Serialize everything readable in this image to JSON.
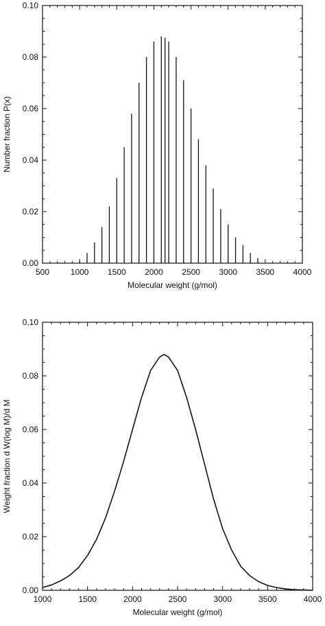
{
  "chart_data": [
    {
      "type": "bar",
      "title": "",
      "xlabel": "Molecular weight (g/mol)",
      "ylabel": "Number fraction P(x)",
      "xlim": [
        500,
        4000
      ],
      "ylim": [
        0,
        0.1
      ],
      "xticks": [
        "500",
        "1000",
        "1500",
        "2000",
        "2500",
        "3000",
        "3500",
        "4000"
      ],
      "yticks": [
        "0.00",
        "0.02",
        "0.04",
        "0.06",
        "0.08",
        "0.10"
      ],
      "grid": false,
      "x": [
        1000,
        1100,
        1200,
        1300,
        1400,
        1500,
        1600,
        1700,
        1800,
        1900,
        2000,
        2100,
        2150,
        2200,
        2300,
        2400,
        2500,
        2600,
        2700,
        2800,
        2900,
        3000,
        3100,
        3200,
        3300,
        3400
      ],
      "values": [
        0.001,
        0.004,
        0.008,
        0.014,
        0.022,
        0.033,
        0.045,
        0.058,
        0.07,
        0.08,
        0.086,
        0.088,
        0.0875,
        0.086,
        0.08,
        0.071,
        0.06,
        0.048,
        0.038,
        0.029,
        0.021,
        0.015,
        0.01,
        0.007,
        0.004,
        0.002
      ]
    },
    {
      "type": "line",
      "title": "",
      "xlabel": "Molecular weight (g/mol)",
      "ylabel": "Weight fraction d W(log M)/d M",
      "xlim": [
        1000,
        4000
      ],
      "ylim": [
        0,
        0.1
      ],
      "xticks": [
        "1000",
        "1500",
        "2000",
        "2500",
        "3000",
        "3500",
        "4000"
      ],
      "yticks": [
        "0.00",
        "0.02",
        "0.04",
        "0.06",
        "0.08",
        "0.10"
      ],
      "grid": false,
      "x": [
        1000,
        1100,
        1200,
        1300,
        1400,
        1500,
        1600,
        1700,
        1800,
        1900,
        2000,
        2100,
        2200,
        2300,
        2350,
        2400,
        2500,
        2600,
        2700,
        2800,
        2900,
        3000,
        3100,
        3200,
        3300,
        3400,
        3500,
        3600,
        3700,
        3800,
        3900,
        4000
      ],
      "values": [
        0.001,
        0.002,
        0.0035,
        0.0055,
        0.0085,
        0.013,
        0.019,
        0.027,
        0.037,
        0.048,
        0.06,
        0.072,
        0.082,
        0.087,
        0.088,
        0.087,
        0.082,
        0.072,
        0.06,
        0.047,
        0.034,
        0.023,
        0.015,
        0.009,
        0.0055,
        0.0032,
        0.0018,
        0.001,
        0.0005,
        0.0002,
        0.0001,
        0.0
      ]
    }
  ]
}
